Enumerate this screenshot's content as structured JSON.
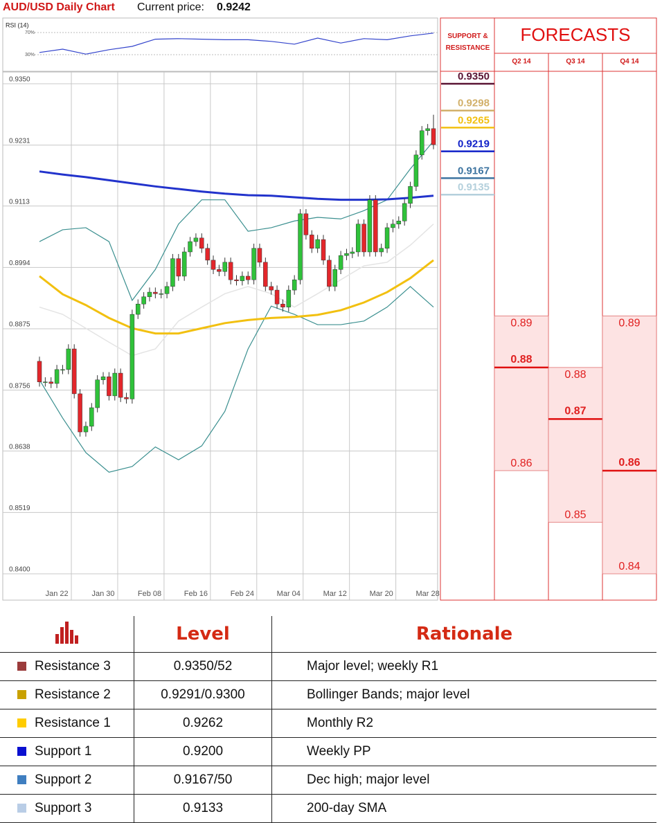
{
  "header": {
    "title": "AUD/USD Daily Chart",
    "price_label": "Current price:",
    "price": 0.9242
  },
  "chart_data": [
    {
      "type": "line",
      "title": "RSI (14)",
      "ylim": [
        0,
        100
      ],
      "yticks": [
        {
          "value": 70,
          "label": "70%"
        },
        {
          "value": 30,
          "label": "30%"
        }
      ],
      "x": [
        0,
        4,
        8,
        12,
        16,
        20,
        24,
        28,
        32,
        36,
        40,
        44,
        48,
        52,
        56,
        60,
        64,
        68
      ],
      "xlim": [
        0,
        68
      ],
      "series": [
        {
          "color": "#3344cc",
          "values": [
            34,
            40,
            31,
            39,
            45,
            58,
            59,
            58,
            57,
            57,
            54,
            49,
            60,
            51,
            59,
            57,
            64,
            69
          ]
        }
      ]
    },
    {
      "type": "candlestick",
      "grid": true,
      "ylim": [
        0.84,
        0.935
      ],
      "yticks": [
        {
          "value": 0.935,
          "label": "0.9350"
        },
        0.9231,
        0.9113,
        0.8994,
        0.8875,
        0.8756,
        0.8638,
        0.8519,
        {
          "value": 0.84,
          "label": "0.8400"
        }
      ],
      "categories": [
        null,
        null,
        null,
        "Jan 22",
        null,
        null,
        null,
        null,
        null,
        null,
        null,
        "Jan 30",
        null,
        null,
        null,
        null,
        null,
        null,
        null,
        "Feb 08",
        null,
        null,
        null,
        null,
        null,
        null,
        null,
        "Feb 16",
        null,
        null,
        null,
        null,
        null,
        null,
        null,
        "Feb 24",
        null,
        null,
        null,
        null,
        null,
        null,
        null,
        "Mar 04",
        null,
        null,
        null,
        null,
        null,
        null,
        null,
        "Mar 12",
        null,
        null,
        null,
        null,
        null,
        null,
        null,
        "Mar 20",
        null,
        null,
        null,
        null,
        null,
        null,
        null,
        "Mar 28",
        null
      ],
      "up_color": "#2fc23a",
      "down_color": "#e3262b",
      "open": [
        0.8812,
        0.8772,
        0.8772,
        0.8769,
        0.8796,
        0.8796,
        0.8836,
        0.8749,
        0.8675,
        0.8686,
        0.8722,
        0.8776,
        0.8782,
        0.8745,
        0.8789,
        0.8742,
        0.8739,
        0.8903,
        0.8923,
        0.8937,
        0.8946,
        0.8943,
        0.8943,
        0.8957,
        0.9011,
        0.8977,
        0.9024,
        0.9044,
        0.9051,
        0.9031,
        0.9008,
        0.899,
        0.8986,
        0.9004,
        0.897,
        0.8968,
        0.8977,
        0.897,
        0.9031,
        0.9004,
        0.8957,
        0.895,
        0.8923,
        0.8917,
        0.895,
        0.897,
        0.9098,
        0.9057,
        0.9031,
        0.9048,
        0.9008,
        0.8957,
        0.899,
        0.9017,
        0.9021,
        0.9024,
        0.9078,
        0.9024,
        0.9125,
        0.9024,
        0.9031,
        0.9071,
        0.9078,
        0.9084,
        0.9118,
        0.9151,
        0.9212,
        0.9259,
        0.9263
      ],
      "high": [
        0.8821,
        0.8781,
        0.8781,
        0.8805,
        0.8805,
        0.8845,
        0.8845,
        0.8758,
        0.8695,
        0.8731,
        0.8785,
        0.8791,
        0.8791,
        0.8798,
        0.8798,
        0.8751,
        0.8912,
        0.8932,
        0.8946,
        0.8955,
        0.8955,
        0.8952,
        0.8966,
        0.902,
        0.902,
        0.9033,
        0.9053,
        0.906,
        0.906,
        0.904,
        0.9017,
        0.8999,
        0.9013,
        0.9013,
        0.8979,
        0.8986,
        0.8986,
        0.904,
        0.904,
        0.9013,
        0.8966,
        0.8959,
        0.8932,
        0.8959,
        0.8979,
        0.9107,
        0.9107,
        0.9066,
        0.9057,
        0.9057,
        0.9017,
        0.8999,
        0.9026,
        0.903,
        0.9033,
        0.9087,
        0.9087,
        0.9134,
        0.9134,
        0.904,
        0.908,
        0.9087,
        0.9093,
        0.9127,
        0.916,
        0.9221,
        0.9268,
        0.9272,
        0.929
      ],
      "low": [
        0.8763,
        0.8763,
        0.876,
        0.876,
        0.8787,
        0.8787,
        0.874,
        0.8666,
        0.8666,
        0.8677,
        0.8713,
        0.8767,
        0.8736,
        0.8736,
        0.8733,
        0.873,
        0.873,
        0.8894,
        0.8914,
        0.8928,
        0.8934,
        0.8934,
        0.8934,
        0.8948,
        0.8968,
        0.8968,
        0.9015,
        0.9035,
        0.9022,
        0.8999,
        0.8981,
        0.8977,
        0.8977,
        0.8961,
        0.8959,
        0.8959,
        0.8961,
        0.8961,
        0.8995,
        0.8948,
        0.8941,
        0.8914,
        0.8908,
        0.8908,
        0.8941,
        0.8961,
        0.9048,
        0.9022,
        0.9022,
        0.8999,
        0.8948,
        0.8948,
        0.8981,
        0.9008,
        0.9012,
        0.9015,
        0.9015,
        0.9015,
        0.9015,
        0.9015,
        0.9022,
        0.9062,
        0.9069,
        0.9075,
        0.9109,
        0.9142,
        0.9203,
        0.925,
        0.9223
      ],
      "close": [
        0.8772,
        0.8772,
        0.8769,
        0.8796,
        0.8796,
        0.8836,
        0.8749,
        0.8675,
        0.8686,
        0.8722,
        0.8776,
        0.8782,
        0.8745,
        0.8789,
        0.8742,
        0.8739,
        0.8903,
        0.8923,
        0.8937,
        0.8946,
        0.8943,
        0.8943,
        0.8957,
        0.9011,
        0.8977,
        0.9024,
        0.9044,
        0.9051,
        0.9031,
        0.9008,
        0.899,
        0.8986,
        0.9004,
        0.897,
        0.8968,
        0.8977,
        0.897,
        0.9031,
        0.9004,
        0.8957,
        0.895,
        0.8923,
        0.8917,
        0.895,
        0.897,
        0.9098,
        0.9057,
        0.9031,
        0.9048,
        0.9008,
        0.8957,
        0.899,
        0.9017,
        0.9021,
        0.9024,
        0.9078,
        0.9024,
        0.9125,
        0.9024,
        0.9031,
        0.9071,
        0.9078,
        0.9084,
        0.9118,
        0.9151,
        0.9212,
        0.9259,
        0.9263,
        0.9232
      ],
      "overlays": [
        {
          "color": "#e4e4e4",
          "width": 1.5,
          "x": [
            0,
            4,
            8,
            12,
            16,
            20,
            24,
            28,
            32,
            36,
            40,
            44,
            48,
            52,
            56,
            60,
            64,
            68
          ],
          "values": [
            0.8917,
            0.8903,
            0.8876,
            0.8849,
            0.8823,
            0.8836,
            0.889,
            0.8917,
            0.8943,
            0.8957,
            0.8943,
            0.8917,
            0.8943,
            0.897,
            0.8997,
            0.9004,
            0.9037,
            0.9078
          ]
        },
        {
          "color": "#3a8f8f",
          "width": 1.2,
          "x": [
            0,
            4,
            8,
            12,
            16,
            20,
            24,
            28,
            32,
            36,
            40,
            44,
            48,
            52,
            56,
            60,
            64,
            68
          ],
          "values": [
            0.9044,
            0.9067,
            0.9071,
            0.9044,
            0.893,
            0.899,
            0.9078,
            0.9125,
            0.9125,
            0.9064,
            0.9071,
            0.9084,
            0.9091,
            0.9088,
            0.9104,
            0.9125,
            0.9185,
            0.9239
          ]
        },
        {
          "color": "#3a8f8f",
          "width": 1.2,
          "x": [
            0,
            4,
            8,
            12,
            16,
            20,
            24,
            28,
            32,
            36,
            40,
            44,
            48,
            52,
            56,
            60,
            64,
            68
          ],
          "values": [
            0.8776,
            0.8702,
            0.8635,
            0.8597,
            0.8608,
            0.8646,
            0.8621,
            0.8648,
            0.8715,
            0.8836,
            0.8919,
            0.8903,
            0.8883,
            0.8883,
            0.889,
            0.8917,
            0.8957,
            0.8917
          ]
        },
        {
          "color": "#f2c010",
          "width": 3,
          "x": [
            0,
            4,
            8,
            12,
            16,
            20,
            24,
            28,
            32,
            36,
            40,
            44,
            48,
            52,
            56,
            60,
            64,
            68
          ],
          "values": [
            0.8977,
            0.8942,
            0.8921,
            0.8896,
            0.8876,
            0.8866,
            0.8866,
            0.8876,
            0.8886,
            0.8892,
            0.8896,
            0.8898,
            0.8902,
            0.8911,
            0.8926,
            0.8946,
            0.8973,
            0.9008
          ]
        },
        {
          "color": "#2233cc",
          "width": 3,
          "x": [
            0,
            4,
            8,
            12,
            16,
            20,
            24,
            28,
            32,
            36,
            40,
            44,
            48,
            52,
            56,
            60,
            64,
            68
          ],
          "values": [
            0.918,
            0.9174,
            0.9169,
            0.9163,
            0.9157,
            0.9151,
            0.9146,
            0.9141,
            0.9137,
            0.9134,
            0.9133,
            0.913,
            0.9127,
            0.9125,
            0.9125,
            0.9126,
            0.9129,
            0.9133
          ]
        }
      ]
    }
  ],
  "support_resistance": {
    "title": "SUPPORT & RESISTANCE",
    "levels": [
      {
        "value": 0.935,
        "label": "0.9350"
      },
      0.9298,
      0.9265,
      0.9219,
      0.9167,
      0.9135
    ],
    "colors": [
      "#5a1433",
      "#d2b06a",
      "#f2c010",
      "#1020c8",
      "#3d74a0",
      "#b4d0dc"
    ]
  },
  "forecasts": {
    "title": "FORECASTS",
    "periods": [
      {
        "name": "Q2 14",
        "high": 0.89,
        "mid": 0.88,
        "low": 0.86
      },
      {
        "name": "Q3 14",
        "high": 0.88,
        "mid": 0.87,
        "low": 0.85
      },
      {
        "name": "Q4 14",
        "high": 0.89,
        "mid": 0.86,
        "low": 0.84
      }
    ]
  },
  "table": {
    "columns": [
      "Level",
      "Rationale"
    ],
    "rows": [
      [
        "Resistance 3",
        "0.9350/52",
        "Major level; weekly R1"
      ],
      [
        "Resistance 2",
        "0.9291/0.9300",
        "Bollinger Bands; major level"
      ],
      [
        "Resistance 1",
        "0.9262",
        "Monthly R2"
      ],
      [
        "Support 1",
        "0.9200",
        "Weekly PP"
      ],
      [
        "Support 2",
        "0.9167/50",
        "Dec high; major level"
      ],
      [
        "Support 3",
        "0.9133",
        "200-day SMA"
      ]
    ],
    "row_colors": [
      "#9b3b3b",
      "#c9a100",
      "#ffcc00",
      "#0a10d0",
      "#3f7ec0",
      "#b9cde6"
    ]
  }
}
